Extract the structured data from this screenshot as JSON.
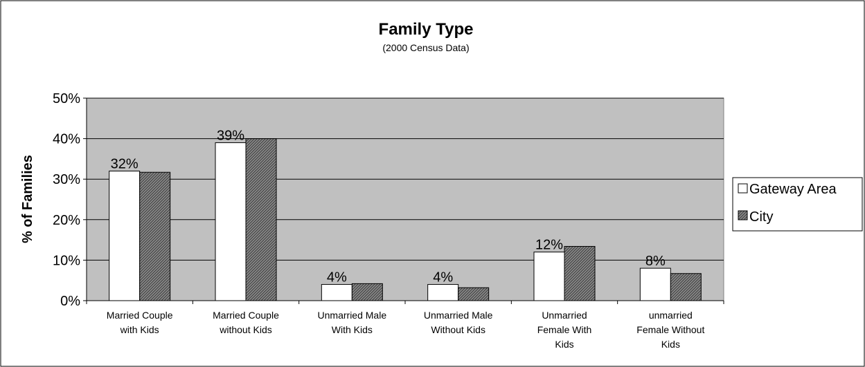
{
  "chart_data": {
    "type": "bar",
    "title": "Family Type",
    "subtitle": "(2000 Census Data)",
    "xlabel": "",
    "ylabel": "% of Families",
    "ylim": [
      0,
      50
    ],
    "yticks": [
      "0%",
      "10%",
      "20%",
      "30%",
      "40%",
      "50%"
    ],
    "grid": true,
    "legend_position": "right",
    "categories": [
      [
        "Married Couple",
        "with Kids"
      ],
      [
        "Married Couple",
        "without Kids"
      ],
      [
        "Unmarried Male",
        "With Kids"
      ],
      [
        "Unmarried Male",
        "Without Kids"
      ],
      [
        "Unmarried",
        "Female With",
        "Kids"
      ],
      [
        "unmarried",
        "Female Without",
        "Kids"
      ]
    ],
    "series": [
      {
        "name": "Gateway Area",
        "values": [
          32,
          39,
          4,
          4,
          12,
          8
        ],
        "data_labels": [
          "32%",
          "39%",
          "4%",
          "4%",
          "12%",
          "8%"
        ],
        "color": "#ffffff"
      },
      {
        "name": "City",
        "values": [
          31.7,
          40,
          4.2,
          3.2,
          13.4,
          6.7
        ],
        "color": "#808080"
      }
    ],
    "colors": {
      "plot_background": "#c0c0c0",
      "gridline": "#000000"
    }
  }
}
